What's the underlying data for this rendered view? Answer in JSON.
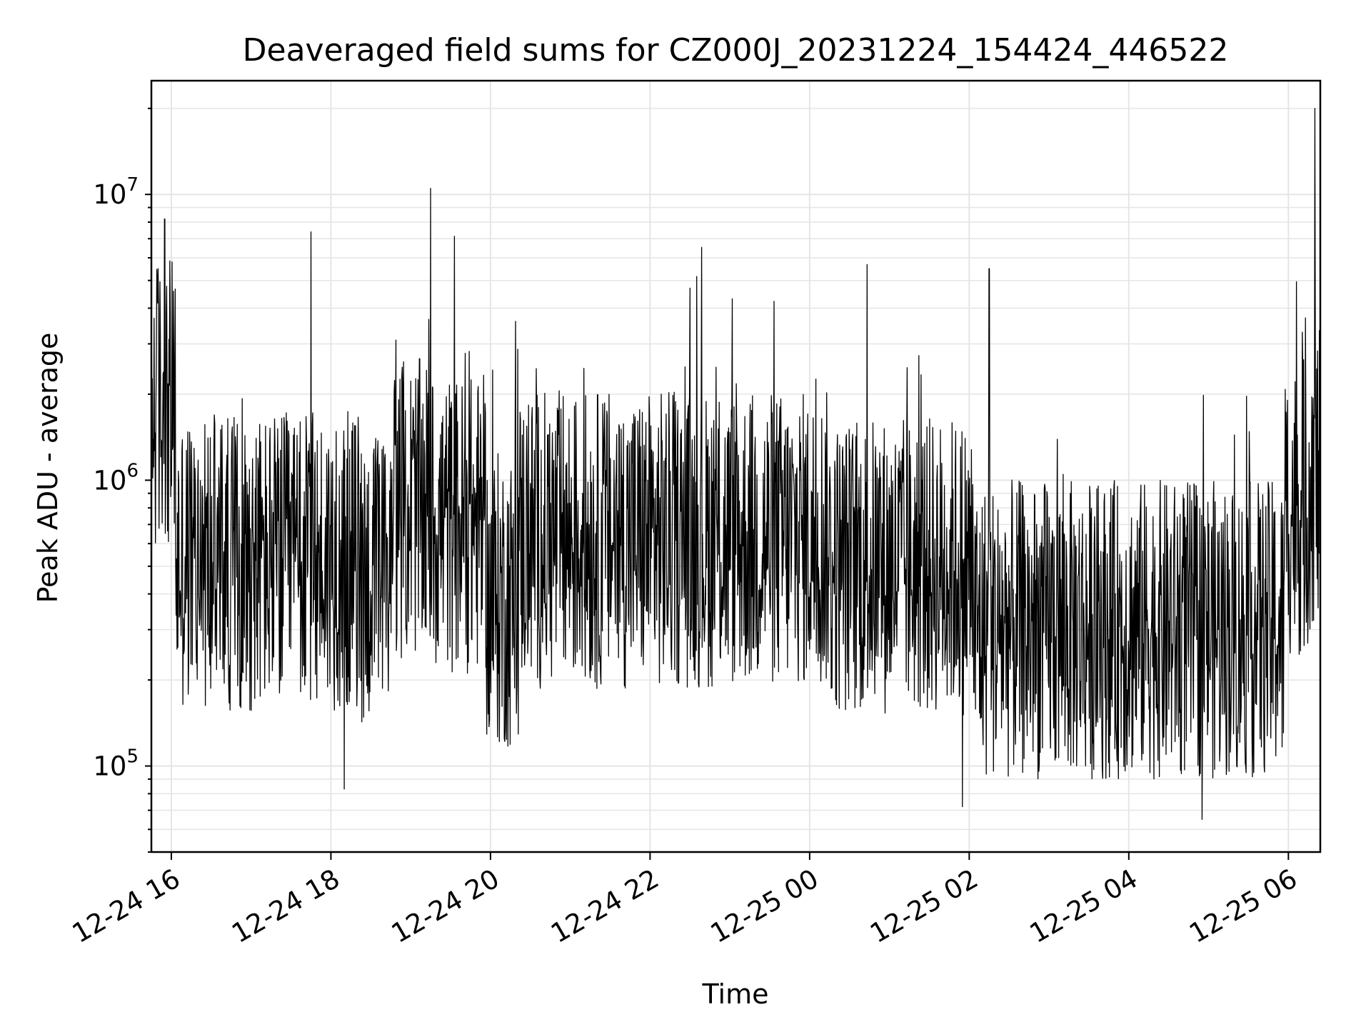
{
  "chart_data": {
    "type": "line",
    "title": "Deaveraged field sums for CZ000J_20231224_154424_446522",
    "xlabel": "Time",
    "ylabel": "Peak ADU - average",
    "yscale": "log",
    "ylim": [
      50000,
      25000000
    ],
    "xlim": [
      "2023-12-24 15:45",
      "2023-12-25 06:24"
    ],
    "x_ticks": [
      {
        "label": "12-24 16",
        "t": "2023-12-24 16:00"
      },
      {
        "label": "12-24 18",
        "t": "2023-12-24 18:00"
      },
      {
        "label": "12-24 20",
        "t": "2023-12-24 20:00"
      },
      {
        "label": "12-24 22",
        "t": "2023-12-24 22:00"
      },
      {
        "label": "12-25 00",
        "t": "2023-12-25 00:00"
      },
      {
        "label": "12-25 02",
        "t": "2023-12-25 02:00"
      },
      {
        "label": "12-25 04",
        "t": "2023-12-25 04:00"
      },
      {
        "label": "12-25 06",
        "t": "2023-12-25 06:00"
      }
    ],
    "y_ticks": [
      {
        "base": "10",
        "exp": "5",
        "value": 100000
      },
      {
        "base": "10",
        "exp": "6",
        "value": 1000000
      },
      {
        "base": "10",
        "exp": "7",
        "value": 10000000
      }
    ],
    "grid": true,
    "line_color": "#000000",
    "grid_color": "#e5e5e5",
    "series": [
      {
        "note_spikes": "approximate envelope of the dense noisy trace; key extremes listed",
        "points": [
          [
            "2023-12-24 15:45",
            700000
          ],
          [
            "2023-12-24 15:50",
            5500000
          ],
          [
            "2023-12-24 15:55",
            8200000
          ],
          [
            "2023-12-24 16:00",
            1500000
          ],
          [
            "2023-12-24 16:10",
            600000
          ],
          [
            "2023-12-24 16:30",
            500000
          ],
          [
            "2023-12-24 17:00",
            500000
          ],
          [
            "2023-12-24 17:30",
            450000
          ],
          [
            "2023-12-24 17:45",
            7400000
          ],
          [
            "2023-12-24 18:00",
            400000
          ],
          [
            "2023-12-24 18:10",
            83000
          ],
          [
            "2023-12-24 18:30",
            400000
          ],
          [
            "2023-12-24 18:45",
            700000
          ],
          [
            "2023-12-24 19:00",
            900000
          ],
          [
            "2023-12-24 19:15",
            10500000
          ],
          [
            "2023-12-24 19:30",
            700000
          ],
          [
            "2023-12-24 20:00",
            400000
          ],
          [
            "2023-12-24 20:30",
            600000
          ],
          [
            "2023-12-24 21:00",
            700000
          ],
          [
            "2023-12-24 21:30",
            600000
          ],
          [
            "2023-12-24 22:00",
            550000
          ],
          [
            "2023-12-24 22:30",
            4700000
          ],
          [
            "2023-12-24 23:00",
            650000
          ],
          [
            "2023-12-24 23:30",
            550000
          ],
          [
            "2023-12-25 00:00",
            450000
          ],
          [
            "2023-12-25 00:30",
            400000
          ],
          [
            "2023-12-25 01:00",
            400000
          ],
          [
            "2023-12-25 01:30",
            350000
          ],
          [
            "2023-12-25 01:55",
            72000
          ],
          [
            "2023-12-25 02:15",
            5500000
          ],
          [
            "2023-12-25 02:30",
            300000
          ],
          [
            "2023-12-25 03:00",
            280000
          ],
          [
            "2023-12-25 03:30",
            280000
          ],
          [
            "2023-12-25 04:00",
            300000
          ],
          [
            "2023-12-25 04:30",
            300000
          ],
          [
            "2023-12-25 04:55",
            65000
          ],
          [
            "2023-12-25 05:30",
            320000
          ],
          [
            "2023-12-25 06:00",
            400000
          ],
          [
            "2023-12-25 06:15",
            1500000
          ],
          [
            "2023-12-25 06:20",
            20000000
          ],
          [
            "2023-12-25 06:24",
            1000000
          ]
        ]
      }
    ]
  }
}
